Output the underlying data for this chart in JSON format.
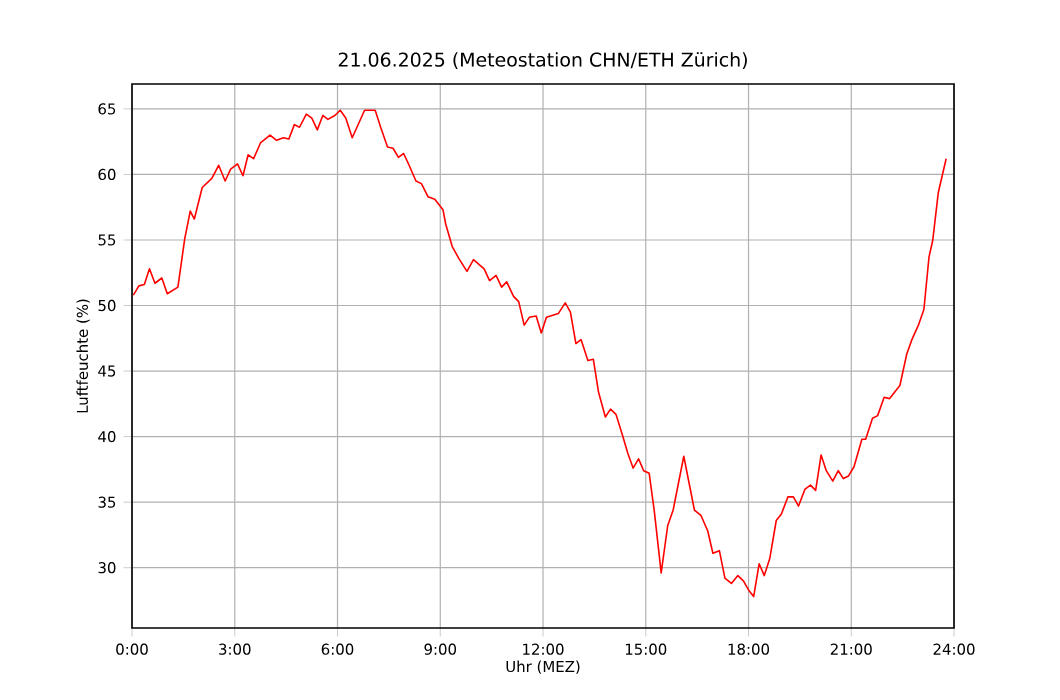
{
  "chart_data": {
    "type": "line",
    "title": "21.06.2025  (Meteostation CHN/ETH Zürich)",
    "xlabel": "Uhr (MEZ)",
    "ylabel": "Luftfeuchte (%)",
    "x": [
      0.04,
      0.2,
      0.36,
      0.51,
      0.67,
      0.87,
      1.03,
      1.34,
      1.54,
      1.7,
      1.82,
      2.05,
      2.33,
      2.53,
      2.72,
      2.88,
      3.08,
      3.24,
      3.39,
      3.55,
      3.75,
      4.03,
      4.22,
      4.42,
      4.58,
      4.74,
      4.89,
      5.09,
      5.25,
      5.41,
      5.57,
      5.72,
      5.92,
      6.08,
      6.24,
      6.43,
      6.79,
      7.1,
      7.26,
      7.46,
      7.62,
      7.78,
      7.93,
      8.09,
      8.29,
      8.45,
      8.64,
      8.84,
      9.08,
      9.16,
      9.35,
      9.54,
      9.78,
      9.97,
      10.28,
      10.44,
      10.63,
      10.79,
      10.94,
      11.14,
      11.29,
      11.45,
      11.6,
      11.8,
      11.95,
      12.1,
      12.45,
      12.65,
      12.8,
      12.96,
      13.11,
      13.31,
      13.47,
      13.62,
      13.82,
      13.97,
      14.13,
      14.32,
      14.48,
      14.63,
      14.79,
      14.94,
      15.1,
      15.25,
      15.45,
      15.64,
      15.8,
      16.11,
      16.42,
      16.61,
      16.81,
      16.96,
      17.15,
      17.31,
      17.5,
      17.69,
      17.85,
      18.0,
      18.15,
      18.31,
      18.46,
      18.62,
      18.81,
      18.96,
      19.15,
      19.31,
      19.46,
      19.65,
      19.81,
      19.96,
      20.12,
      20.27,
      20.46,
      20.62,
      20.77,
      20.92,
      21.08,
      21.31,
      21.42,
      21.62,
      21.77,
      21.96,
      22.12,
      22.42,
      22.62,
      22.77,
      22.96,
      23.12,
      23.27,
      23.38,
      23.54,
      23.77
    ],
    "series": [
      {
        "color": "#ff0000",
        "values": [
          50.8,
          51.5,
          51.6,
          52.8,
          51.7,
          52.1,
          50.9,
          51.4,
          55.1,
          57.2,
          56.6,
          59.0,
          59.7,
          60.7,
          59.5,
          60.4,
          60.8,
          59.9,
          61.5,
          61.2,
          62.4,
          63.0,
          62.6,
          62.8,
          62.7,
          63.8,
          63.6,
          64.6,
          64.3,
          63.4,
          64.5,
          64.2,
          64.5,
          64.9,
          64.3,
          62.8,
          64.9,
          64.9,
          63.6,
          62.1,
          62.0,
          61.3,
          61.6,
          60.7,
          59.5,
          59.3,
          58.3,
          58.1,
          57.3,
          56.2,
          54.5,
          53.6,
          52.6,
          53.5,
          52.8,
          51.9,
          52.3,
          51.4,
          51.8,
          50.7,
          50.3,
          48.5,
          49.1,
          49.2,
          47.9,
          49.1,
          49.4,
          50.2,
          49.5,
          47.1,
          47.4,
          45.8,
          45.9,
          43.4,
          41.5,
          42.1,
          41.7,
          40.1,
          38.7,
          37.6,
          38.3,
          37.4,
          37.2,
          34.3,
          29.6,
          33.2,
          34.4,
          38.5,
          34.4,
          34.0,
          32.8,
          31.1,
          31.3,
          29.2,
          28.8,
          29.4,
          29.0,
          28.3,
          27.8,
          30.3,
          29.4,
          30.7,
          33.6,
          34.1,
          35.4,
          35.4,
          34.7,
          36.0,
          36.3,
          35.9,
          38.6,
          37.4,
          36.6,
          37.4,
          36.8,
          37.0,
          37.7,
          39.8,
          39.8,
          41.4,
          41.6,
          43.0,
          42.9,
          43.9,
          46.3,
          47.4,
          48.5,
          49.7,
          53.7,
          55.0,
          58.6,
          61.2
        ]
      }
    ],
    "xlim": [
      0,
      24
    ],
    "ylim": [
      25.4,
      66.9
    ],
    "xticks": [
      {
        "value": 0,
        "label": "0:00"
      },
      {
        "value": 3,
        "label": "3:00"
      },
      {
        "value": 6,
        "label": "6:00"
      },
      {
        "value": 9,
        "label": "9:00"
      },
      {
        "value": 12,
        "label": "12:00"
      },
      {
        "value": 15,
        "label": "15:00"
      },
      {
        "value": 18,
        "label": "18:00"
      },
      {
        "value": 21,
        "label": "21:00"
      },
      {
        "value": 24,
        "label": "24:00"
      }
    ],
    "yticks": [
      30,
      35,
      40,
      45,
      50,
      55,
      60,
      65
    ],
    "grid": true,
    "line_style": "solid"
  }
}
